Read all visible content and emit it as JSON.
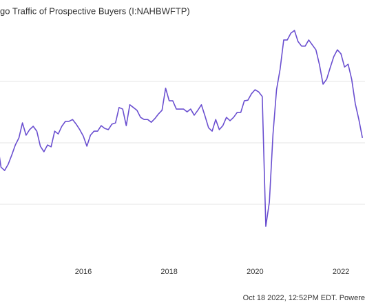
{
  "chart_data": {
    "type": "line",
    "title": "go Traffic of Prospective Buyers (I:NAHBWFTP)",
    "footer": "Oct 18 2022, 12:52PM EDT. Powere",
    "x": [
      2014,
      2014.083,
      2014.167,
      2014.25,
      2014.333,
      2014.417,
      2014.5,
      2014.583,
      2014.667,
      2014.75,
      2014.833,
      2014.917,
      2015,
      2015.083,
      2015.167,
      2015.25,
      2015.333,
      2015.417,
      2015.5,
      2015.583,
      2015.667,
      2015.75,
      2015.833,
      2015.917,
      2016,
      2016.083,
      2016.167,
      2016.25,
      2016.333,
      2016.417,
      2016.5,
      2016.583,
      2016.667,
      2016.75,
      2016.833,
      2016.917,
      2017,
      2017.083,
      2017.167,
      2017.25,
      2017.333,
      2017.417,
      2017.5,
      2017.583,
      2017.667,
      2017.75,
      2017.833,
      2017.917,
      2018,
      2018.083,
      2018.167,
      2018.25,
      2018.333,
      2018.417,
      2018.5,
      2018.583,
      2018.667,
      2018.75,
      2018.833,
      2018.917,
      2019,
      2019.083,
      2019.167,
      2019.25,
      2019.333,
      2019.417,
      2019.5,
      2019.583,
      2019.667,
      2019.75,
      2019.833,
      2019.917,
      2020,
      2020.083,
      2020.167,
      2020.25,
      2020.333,
      2020.417,
      2020.5,
      2020.583,
      2020.667,
      2020.75,
      2020.833,
      2020.917,
      2021,
      2021.083,
      2021.167,
      2021.25,
      2021.333,
      2021.417,
      2021.5,
      2021.583,
      2021.667,
      2021.75,
      2021.833,
      2021.917,
      2022,
      2022.083,
      2022.167,
      2022.25,
      2022.333,
      2022.417,
      2022.5
    ],
    "series": [
      {
        "name": "I:NAHBWFTP",
        "color": "#6a4fd0",
        "values": [
          40.0,
          32.1,
          31.0,
          33.0,
          36.0,
          39.3,
          41.6,
          46.5,
          42.5,
          44.3,
          45.4,
          43.8,
          38.9,
          37.1,
          39.3,
          38.7,
          43.8,
          42.9,
          45.4,
          47.0,
          47.0,
          47.6,
          46.1,
          44.3,
          42.2,
          38.9,
          42.5,
          43.8,
          43.8,
          45.6,
          44.7,
          44.3,
          46.1,
          46.5,
          51.5,
          51.0,
          45.6,
          52.4,
          51.5,
          50.6,
          48.3,
          47.6,
          47.6,
          46.7,
          47.9,
          49.4,
          50.6,
          57.8,
          53.7,
          53.7,
          51.0,
          51.0,
          51.0,
          50.1,
          51.0,
          49.0,
          50.6,
          52.4,
          48.8,
          44.9,
          43.8,
          47.6,
          44.3,
          45.6,
          48.3,
          47.2,
          48.3,
          49.9,
          49.9,
          53.7,
          53.9,
          56.0,
          57.3,
          56.6,
          55.1,
          12.8,
          20.7,
          42.7,
          57.3,
          64.0,
          73.5,
          73.5,
          75.7,
          76.6,
          73.0,
          71.5,
          71.5,
          73.5,
          71.9,
          70.3,
          65.4,
          59.1,
          60.7,
          64.5,
          68.1,
          70.3,
          69.0,
          64.7,
          65.6,
          60.7,
          52.8,
          47.6,
          41.6
        ]
      }
    ],
    "xlim": [
      2014.06,
      2022.56
    ],
    "xticks": [
      {
        "value": 2014,
        "label": "4"
      },
      2016,
      2018,
      2020,
      2022
    ],
    "ylim": [
      0,
      80
    ],
    "yticks": [
      20,
      40,
      60
    ],
    "grid": true
  }
}
